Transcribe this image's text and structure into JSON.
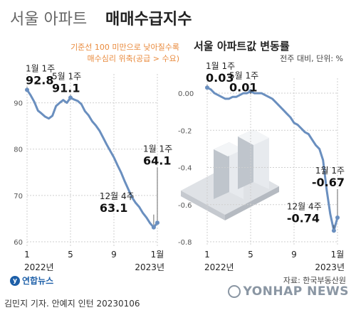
{
  "header": {
    "title_light": "서울 아파트",
    "title_bold": "매매수급지수",
    "right_title": "서울 아파트값 변동률",
    "right_unit": "전주 대비, 단위: %",
    "left_note_line1": "기준선 100 미만으로 낮아질수록",
    "left_note_line2": "매수심리 위축(공급 > 수요)"
  },
  "colors": {
    "line": "#6a8fbf",
    "grid": "#cfcfcf",
    "tick": "#555555",
    "accent": "#e98a3c"
  },
  "chart_data": [
    {
      "type": "line",
      "title": "서울 아파트 매매수급지수",
      "ylim": [
        60,
        95
      ],
      "yticks": [
        "90",
        "80",
        "70",
        "60"
      ],
      "xticks": [
        "1",
        "5",
        "9",
        "1월"
      ],
      "xyear_start": "2022년",
      "xyear_end": "2023년",
      "series": [
        {
          "values": [
            92.8,
            91.6,
            90.2,
            88.3,
            87.7,
            87.0,
            86.6,
            87.2,
            89.3,
            90.0,
            90.6,
            90.0,
            91.1,
            90.7,
            90.4,
            89.7,
            88.2,
            87.3,
            86.0,
            85.1,
            84.0,
            82.5,
            81.0,
            79.6,
            78.2,
            76.5,
            74.9,
            73.0,
            71.3,
            69.6,
            68.4,
            67.5,
            66.2,
            65.2,
            64.0,
            63.1,
            64.1
          ]
        }
      ],
      "annotations": [
        {
          "label": "1월 1주",
          "value": "92.8"
        },
        {
          "label": "5월 1주",
          "value": "91.1"
        },
        {
          "label": "1월 1주",
          "value": "64.1"
        },
        {
          "label": "12월 4주",
          "value": "63.1"
        }
      ]
    },
    {
      "type": "line",
      "title": "서울 아파트값 변동률",
      "ylim": [
        -0.8,
        0.05
      ],
      "yticks": [
        "0.00",
        "-0.2",
        "-0.4",
        "-0.6",
        "-0.8"
      ],
      "xticks": [
        "1",
        "5",
        "9",
        "1월"
      ],
      "xyear_start": "2022년",
      "xyear_end": "2023년",
      "series": [
        {
          "values": [
            0.03,
            0.02,
            0.0,
            -0.01,
            -0.02,
            -0.03,
            -0.03,
            -0.02,
            -0.02,
            -0.01,
            0.0,
            0.0,
            0.01,
            0.0,
            0.0,
            0.0,
            -0.01,
            -0.02,
            -0.03,
            -0.05,
            -0.07,
            -0.09,
            -0.11,
            -0.13,
            -0.16,
            -0.17,
            -0.19,
            -0.21,
            -0.22,
            -0.25,
            -0.28,
            -0.3,
            -0.36,
            -0.52,
            -0.65,
            -0.74,
            -0.67
          ]
        }
      ],
      "annotations": [
        {
          "label": "1월 1주",
          "value": "0.03"
        },
        {
          "label": "5월 1주",
          "value": "0.01"
        },
        {
          "label": "1월 1주",
          "value": "-0.67"
        },
        {
          "label": "12월 4주",
          "value": "-0.74"
        }
      ]
    }
  ],
  "footer": {
    "source": "자료: 한국부동산원",
    "logo_left": "연합뉴스",
    "logo_right": "YONHAP NEWS",
    "byline": "김민지 기자. 안예지 인턴  20230106"
  }
}
